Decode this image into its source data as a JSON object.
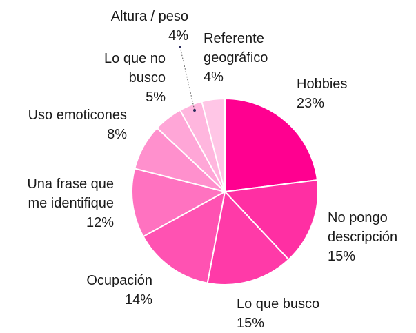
{
  "chart_data": {
    "type": "pie",
    "categories": [
      "Hobbies",
      "No pongo descripción",
      "Lo que busco",
      "Ocupación",
      "Una frase que me identifique",
      "Uso emoticones",
      "Lo que no busco",
      "Altura / peso",
      "Referente geográfico"
    ],
    "values": [
      23,
      15,
      15,
      14,
      12,
      8,
      5,
      4,
      4
    ],
    "value_labels": [
      "23%",
      "15%",
      "15%",
      "14%",
      "12%",
      "8%",
      "5%",
      "4%",
      "4%"
    ],
    "colors": [
      "#ff0090",
      "#ff2fa3",
      "#ff3aa8",
      "#ff52b2",
      "#ff72c0",
      "#ff90cd",
      "#ffa6d7",
      "#ffb6de",
      "#ffc6e6"
    ]
  }
}
